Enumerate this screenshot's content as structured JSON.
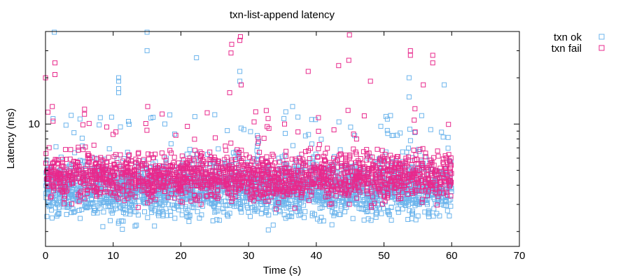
{
  "chart_data": {
    "type": "scatter",
    "title": "txn-list-append latency",
    "xlabel": "Time (s)",
    "ylabel": "Latency (ms)",
    "xlim": [
      0,
      70
    ],
    "ylim_ms": [
      1.6,
      40
    ],
    "y_scale": "log",
    "x_ticks": [
      0,
      10,
      20,
      30,
      40,
      50,
      60,
      70
    ],
    "y_tick_labels": [
      {
        "value": 10,
        "label": "10"
      }
    ],
    "legend_position": "top-right",
    "series": [
      {
        "name": "txn ok",
        "color": "#6cb4ec",
        "marker": "open-square",
        "estimated_points": 2400,
        "typical_range_ms": [
          2.2,
          6.5
        ],
        "sample_points": [
          {
            "x": 1.3,
            "y": 40
          },
          {
            "x": 15.0,
            "y": 40
          },
          {
            "x": 15.0,
            "y": 30
          },
          {
            "x": 22.3,
            "y": 27
          },
          {
            "x": 10.8,
            "y": 20
          },
          {
            "x": 10.8,
            "y": 19
          },
          {
            "x": 10.8,
            "y": 17
          },
          {
            "x": 10.8,
            "y": 16
          },
          {
            "x": 28.7,
            "y": 22
          },
          {
            "x": 28.7,
            "y": 19
          },
          {
            "x": 53.7,
            "y": 20
          },
          {
            "x": 53.7,
            "y": 15
          },
          {
            "x": 58.9,
            "y": 18
          },
          {
            "x": 8.1,
            "y": 11
          },
          {
            "x": 25.0,
            "y": 11.5
          },
          {
            "x": 35.5,
            "y": 12
          },
          {
            "x": 36.5,
            "y": 13
          }
        ]
      },
      {
        "name": "txn fail",
        "color": "#e8298c",
        "marker": "open-square",
        "estimated_points": 1900,
        "typical_range_ms": [
          2.8,
          7.5
        ],
        "sample_points": [
          {
            "x": 0.0,
            "y": 20
          },
          {
            "x": 1.4,
            "y": 25
          },
          {
            "x": 1.4,
            "y": 21
          },
          {
            "x": 28.8,
            "y": 37
          },
          {
            "x": 28.7,
            "y": 35
          },
          {
            "x": 27.5,
            "y": 33
          },
          {
            "x": 27.4,
            "y": 29
          },
          {
            "x": 44.9,
            "y": 38
          },
          {
            "x": 53.9,
            "y": 30
          },
          {
            "x": 53.9,
            "y": 28
          },
          {
            "x": 57.2,
            "y": 28
          },
          {
            "x": 57.2,
            "y": 25
          },
          {
            "x": 38.8,
            "y": 22
          },
          {
            "x": 43.3,
            "y": 24
          },
          {
            "x": 44.8,
            "y": 26
          },
          {
            "x": 28.9,
            "y": 18
          },
          {
            "x": 15.1,
            "y": 13
          },
          {
            "x": 27.2,
            "y": 16
          },
          {
            "x": 48.0,
            "y": 19
          },
          {
            "x": 55.8,
            "y": 18
          },
          {
            "x": 1.0,
            "y": 13
          }
        ]
      }
    ]
  }
}
